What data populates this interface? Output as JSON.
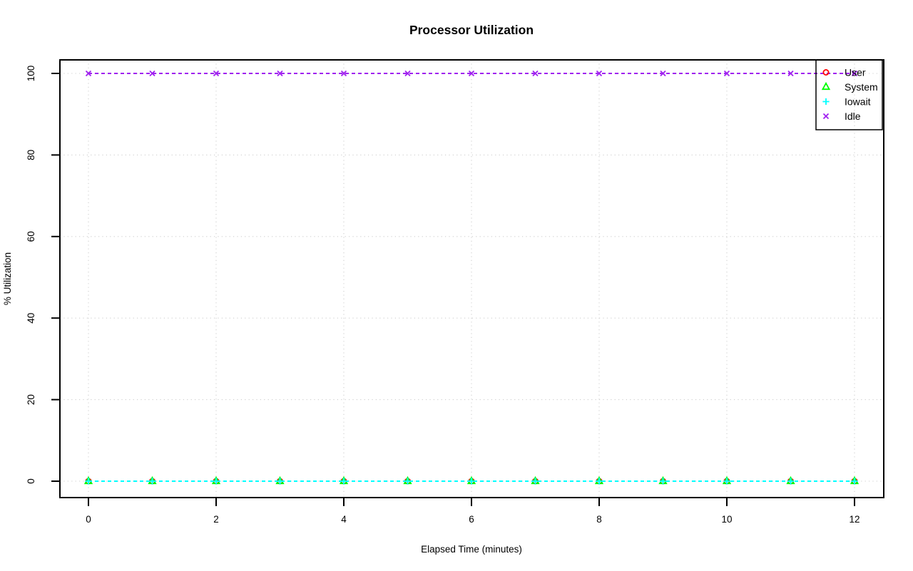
{
  "chart_data": {
    "type": "line",
    "title": "Processor Utilization",
    "xlabel": "Elapsed Time (minutes)",
    "ylabel": "% Utilization",
    "xlim": [
      0,
      12
    ],
    "ylim": [
      0,
      100
    ],
    "x_ticks": [
      0,
      2,
      4,
      6,
      8,
      10,
      12
    ],
    "y_ticks": [
      0,
      20,
      40,
      60,
      80,
      100
    ],
    "grid": true,
    "grid_style": "dotted",
    "grid_color": "#cfcfcf",
    "legend_position": "topright",
    "line_style": "dashed",
    "x": [
      0,
      1,
      2,
      3,
      4,
      5,
      6,
      7,
      8,
      9,
      10,
      11,
      12
    ],
    "series": [
      {
        "name": "User",
        "marker": "circle",
        "color": "#FF0000",
        "values": [
          0,
          0,
          0,
          0,
          0,
          0,
          0,
          0,
          0,
          0,
          0,
          0,
          0
        ]
      },
      {
        "name": "System",
        "marker": "triangle",
        "color": "#00FF00",
        "values": [
          0,
          0,
          0,
          0,
          0,
          0,
          0,
          0,
          0,
          0,
          0,
          0,
          0
        ]
      },
      {
        "name": "Iowait",
        "marker": "plus",
        "color": "#00FFFF",
        "values": [
          0,
          0,
          0,
          0,
          0,
          0,
          0,
          0,
          0,
          0,
          0,
          0,
          0
        ]
      },
      {
        "name": "Idle",
        "marker": "x",
        "color": "#A020F0",
        "values": [
          100,
          100,
          100,
          100,
          100,
          100,
          100,
          100,
          100,
          100,
          100,
          100,
          100
        ]
      }
    ]
  }
}
